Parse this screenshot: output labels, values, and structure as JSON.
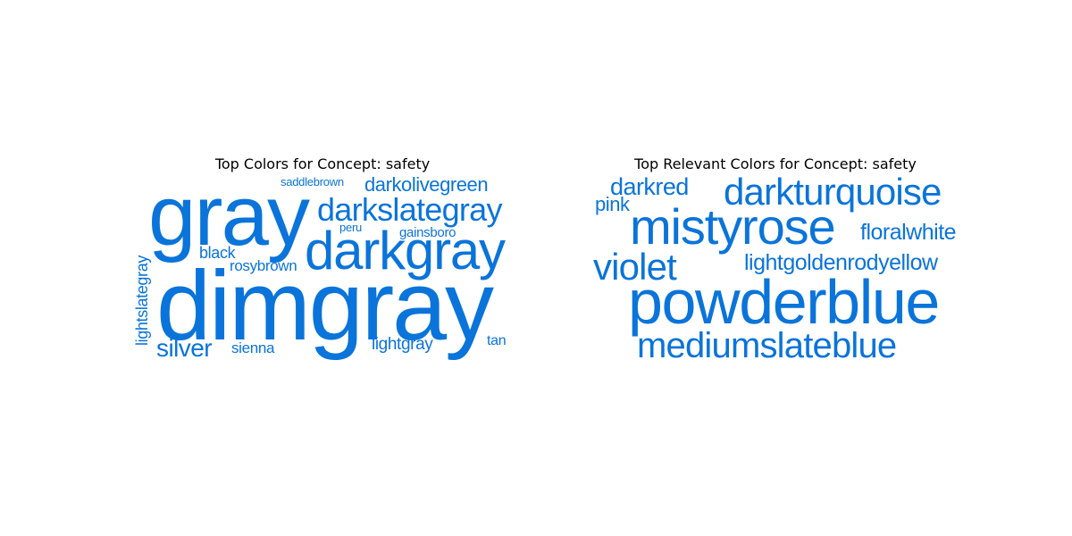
{
  "accent": "#0a74da",
  "panels": [
    {
      "title": "Top Colors for Concept: safety",
      "words": [
        "gray",
        "dimgray",
        "darkgray",
        "darkslategray",
        "darkolivegreen",
        "saddlebrown",
        "peru",
        "gainsboro",
        "black",
        "rosybrown",
        "lightslategray",
        "silver",
        "sienna",
        "lightgray",
        "tan"
      ]
    },
    {
      "title": "Top Relevant Colors for Concept: safety",
      "words": [
        "darkred",
        "pink",
        "darkturquoise",
        "mistyrose",
        "floralwhite",
        "violet",
        "lightgoldenrodyellow",
        "powderblue",
        "mediumslateblue"
      ]
    }
  ]
}
